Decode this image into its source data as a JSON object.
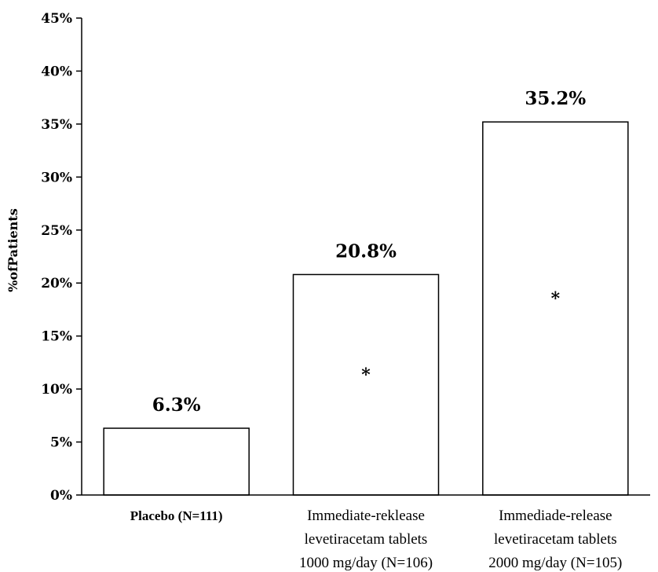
{
  "chart_data": {
    "type": "bar",
    "ylabel": "%ofPatients",
    "ylim": [
      0,
      45
    ],
    "yticks": [
      "0%",
      "5%",
      "10%",
      "15%",
      "20%",
      "25%",
      "30%",
      "35%",
      "40%",
      "45%"
    ],
    "categories": [
      [
        "Placebo (N=111)"
      ],
      [
        "Immediate-reklease",
        "levetiracetam tablets",
        "1000 mg/day (N=106)"
      ],
      [
        "Immediade-release",
        "levetiracetam tablets",
        "2000 mg/day (N=105)"
      ]
    ],
    "values": [
      6.3,
      20.8,
      35.2
    ],
    "data_labels": [
      "6.3%",
      "20.8%",
      "35.2%"
    ],
    "significance_marks": [
      "",
      "*",
      "*"
    ],
    "grid": false,
    "bar_color": "#ffffff",
    "bar_border_color": "#000000"
  }
}
